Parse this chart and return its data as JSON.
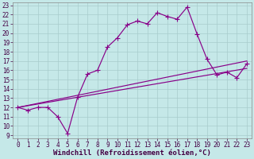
{
  "xlabel": "Windchill (Refroidissement éolien,°C)",
  "bg_color": "#c5e8e8",
  "line_color": "#880088",
  "grid_color": "#a8cccc",
  "xlim": [
    -0.5,
    23.5
  ],
  "ylim": [
    8.7,
    23.3
  ],
  "xticks": [
    0,
    1,
    2,
    3,
    4,
    5,
    6,
    7,
    8,
    9,
    10,
    11,
    12,
    13,
    14,
    15,
    16,
    17,
    18,
    19,
    20,
    21,
    22,
    23
  ],
  "yticks": [
    9,
    10,
    11,
    12,
    13,
    14,
    15,
    16,
    17,
    18,
    19,
    20,
    21,
    22,
    23
  ],
  "line1_x": [
    0,
    1,
    2,
    3,
    4,
    5,
    6,
    7,
    8,
    9,
    10,
    11,
    12,
    13,
    14,
    15,
    16,
    17,
    18,
    19,
    20,
    21,
    22,
    23
  ],
  "line1_y": [
    12.0,
    11.7,
    12.0,
    12.0,
    11.0,
    9.2,
    13.1,
    15.6,
    16.0,
    18.5,
    19.5,
    20.9,
    21.3,
    21.0,
    22.2,
    21.8,
    21.5,
    22.8,
    19.9,
    17.2,
    15.5,
    15.8,
    15.2,
    16.7
  ],
  "line2_x": [
    0,
    23
  ],
  "line2_y": [
    12.0,
    17.0
  ],
  "line3_x": [
    0,
    23
  ],
  "line3_y": [
    12.0,
    16.2
  ],
  "markersize": 2.5,
  "linewidth": 0.85,
  "tick_fontsize": 5.5,
  "label_fontsize": 6.5
}
